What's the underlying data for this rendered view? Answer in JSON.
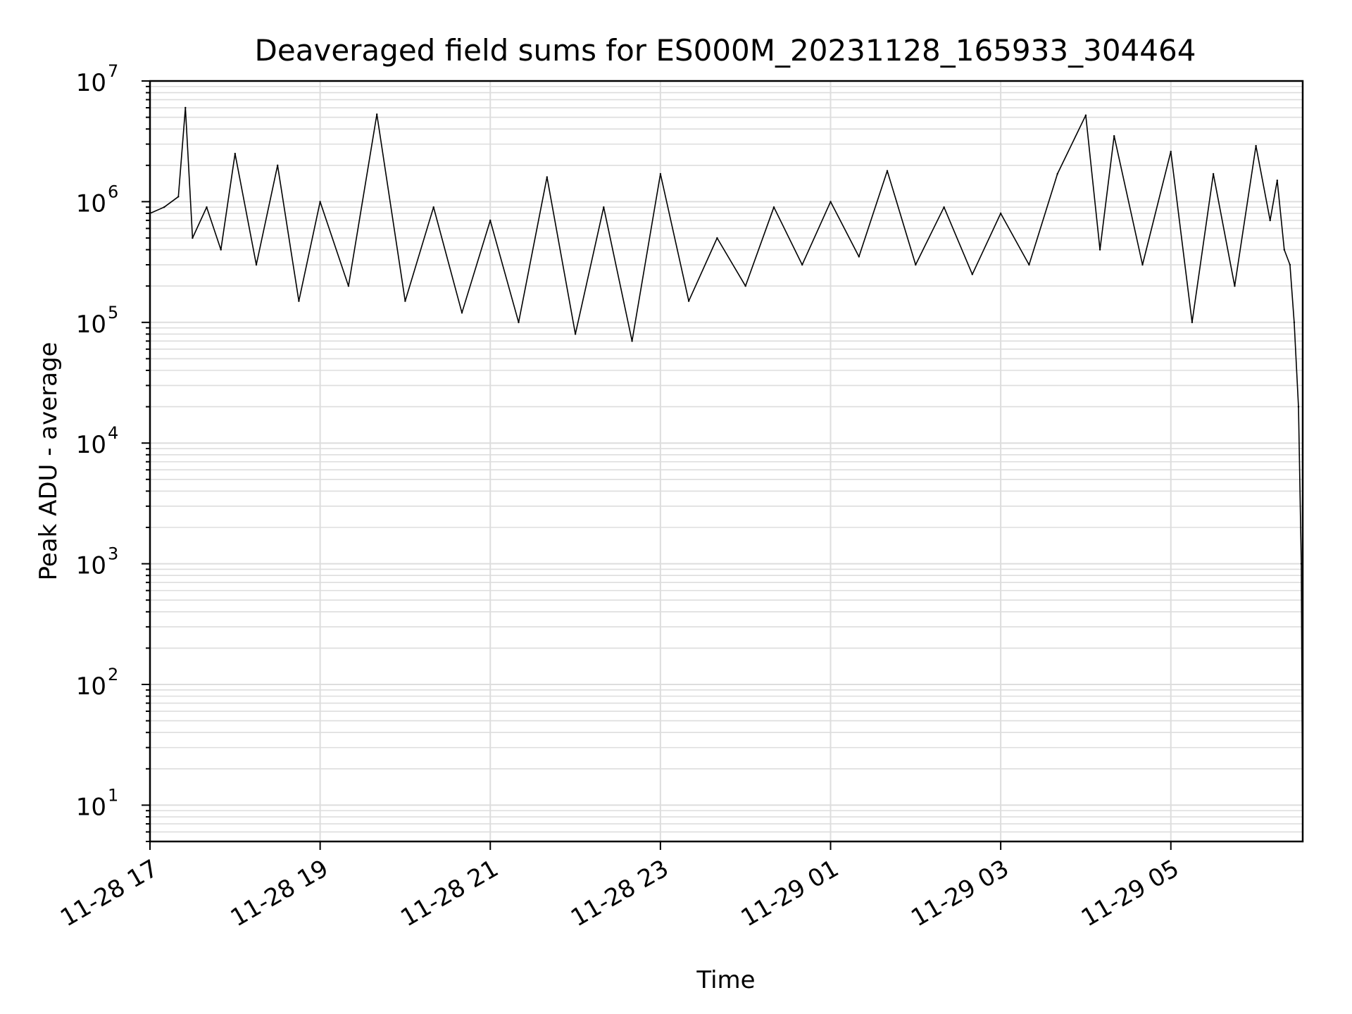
{
  "chart_data": {
    "type": "line",
    "title": "Deaveraged field sums for ES000M_20231128_165933_304464",
    "xlabel": "Time",
    "ylabel": "Peak ADU - average",
    "y_scale": "log",
    "ylim": [
      5,
      10000000
    ],
    "xlim": [
      "2023-11-28 17:00",
      "2023-11-29 06:33"
    ],
    "grid": true,
    "line_color": "#000000",
    "grid_color": "#dddddd",
    "x_ticks": [
      {
        "time": "2023-11-28 17:00",
        "label": "11-28 17"
      },
      {
        "time": "2023-11-28 19:00",
        "label": "11-28 19"
      },
      {
        "time": "2023-11-28 21:00",
        "label": "11-28 21"
      },
      {
        "time": "2023-11-28 23:00",
        "label": "11-28 23"
      },
      {
        "time": "2023-11-29 01:00",
        "label": "11-29 01"
      },
      {
        "time": "2023-11-29 03:00",
        "label": "11-29 03"
      },
      {
        "time": "2023-11-29 05:00",
        "label": "11-29 05"
      }
    ],
    "y_ticks": [
      {
        "value": 10,
        "base": "10",
        "exp": "1"
      },
      {
        "value": 100,
        "base": "10",
        "exp": "2"
      },
      {
        "value": 1000,
        "base": "10",
        "exp": "3"
      },
      {
        "value": 10000,
        "base": "10",
        "exp": "4"
      },
      {
        "value": 100000,
        "base": "10",
        "exp": "5"
      },
      {
        "value": 1000000,
        "base": "10",
        "exp": "6"
      },
      {
        "value": 10000000,
        "base": "10",
        "exp": "7"
      }
    ],
    "series": [
      {
        "x": [
          "2023-11-28 17:00",
          "2023-11-28 17:10",
          "2023-11-28 17:20",
          "2023-11-28 17:25",
          "2023-11-28 17:30",
          "2023-11-28 17:40",
          "2023-11-28 17:50",
          "2023-11-28 18:00",
          "2023-11-28 18:15",
          "2023-11-28 18:30",
          "2023-11-28 18:45",
          "2023-11-28 19:00",
          "2023-11-28 19:20",
          "2023-11-28 19:40",
          "2023-11-28 20:00",
          "2023-11-28 20:20",
          "2023-11-28 20:40",
          "2023-11-28 21:00",
          "2023-11-28 21:20",
          "2023-11-28 21:40",
          "2023-11-28 22:00",
          "2023-11-28 22:20",
          "2023-11-28 22:40",
          "2023-11-28 23:00",
          "2023-11-28 23:20",
          "2023-11-28 23:40",
          "2023-11-29 00:00",
          "2023-11-29 00:20",
          "2023-11-29 00:40",
          "2023-11-29 01:00",
          "2023-11-29 01:20",
          "2023-11-29 01:40",
          "2023-11-29 02:00",
          "2023-11-29 02:20",
          "2023-11-29 02:40",
          "2023-11-29 03:00",
          "2023-11-29 03:20",
          "2023-11-29 03:40",
          "2023-11-29 04:00",
          "2023-11-29 04:10",
          "2023-11-29 04:20",
          "2023-11-29 04:40",
          "2023-11-29 05:00",
          "2023-11-29 05:15",
          "2023-11-29 05:30",
          "2023-11-29 05:45",
          "2023-11-29 06:00",
          "2023-11-29 06:10",
          "2023-11-29 06:15",
          "2023-11-29 06:20",
          "2023-11-29 06:24",
          "2023-11-29 06:27",
          "2023-11-29 06:30",
          "2023-11-29 06:32",
          "2023-11-29 06:33"
        ],
        "y": [
          800000,
          900000,
          1100000,
          6000000,
          500000,
          900000,
          400000,
          2500000,
          300000,
          2000000,
          150000,
          1000000,
          200000,
          5300000,
          150000,
          900000,
          120000,
          700000,
          100000,
          1600000,
          80000,
          900000,
          70000,
          1700000,
          150000,
          500000,
          200000,
          900000,
          300000,
          1000000,
          350000,
          1800000,
          300000,
          900000,
          250000,
          800000,
          300000,
          1700000,
          5200000,
          400000,
          3500000,
          300000,
          2600000,
          100000,
          1700000,
          200000,
          2900000,
          700000,
          1500000,
          400000,
          300000,
          100000,
          20000,
          1000,
          5
        ]
      }
    ]
  }
}
